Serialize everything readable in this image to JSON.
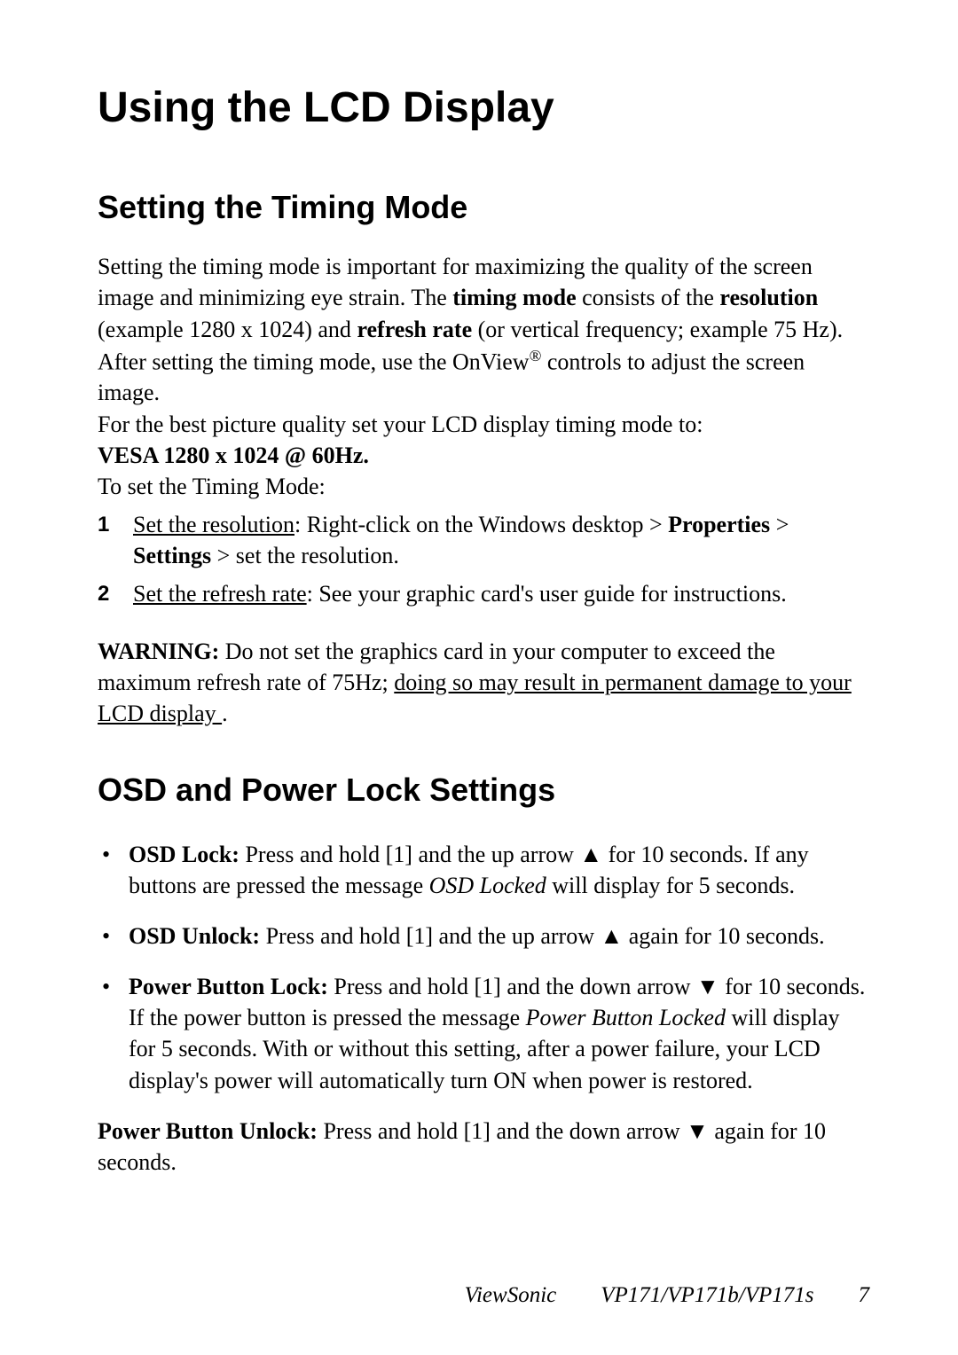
{
  "main_title": "Using the LCD Display",
  "section1": {
    "title": "Setting the Timing Mode",
    "para1_a": "Setting the timing mode is important for maximizing the quality of the screen image and minimizing eye strain. The ",
    "para1_b": "timing mode",
    "para1_c": " consists of the ",
    "para1_d": "resolution",
    "para1_e": " (example 1280 x 1024) and ",
    "para1_f": "refresh rate",
    "para1_g": " (or vertical frequency; example 75 Hz). After setting the timing mode, use the OnView",
    "para1_h": "®",
    "para1_i": " controls to adjust the screen image.",
    "para2": "For the best picture quality set your LCD display timing mode to:",
    "para3": "VESA 1280 x 1024 @ 60Hz.",
    "para4": "To set the Timing Mode:",
    "step1_a": "Set the resolution",
    "step1_b": ": Right-click on the Windows desktop > ",
    "step1_c": "Properties",
    "step1_d": " > ",
    "step1_e": "Settings",
    "step1_f": " > set the resolution.",
    "step2_a": "Set the refresh rate",
    "step2_b": ": See your graphic card's user guide for instructions.",
    "warn_a": "WARNING:",
    "warn_b": " Do not set the graphics card in your computer to exceed the maximum refresh rate of 75Hz; ",
    "warn_c": "doing so may result in permanent damage to your LCD display ",
    "warn_d": " ."
  },
  "section2": {
    "title": "OSD and Power Lock Settings",
    "b1_a": "OSD Lock:",
    "b1_b": " Press and hold [1] and the up arrow ▲ for 10 seconds. If any buttons are pressed the message ",
    "b1_c": "OSD Locked",
    "b1_d": " will display for 5 seconds.",
    "b2_a": "OSD Unlock:",
    "b2_b": " Press and hold [1] and the up arrow ▲ again for 10 seconds.",
    "b3_a": "Power Button Lock:",
    "b3_b": " Press and hold [1] and the down arrow ▼ for 10 seconds. If the power button is pressed the message ",
    "b3_c": "Power Button Locked",
    "b3_d": " will display for 5 seconds. With or without this setting, after a power failure, your LCD display's power will automatically turn ON when power is restored.",
    "pbu_a": "Power Button Unlock:",
    "pbu_b": " Press and hold [1] and the down arrow ▼ again for 10 seconds."
  },
  "footer": {
    "brand": "ViewSonic",
    "model": "VP171/VP171b/VP171s",
    "page": "7"
  }
}
